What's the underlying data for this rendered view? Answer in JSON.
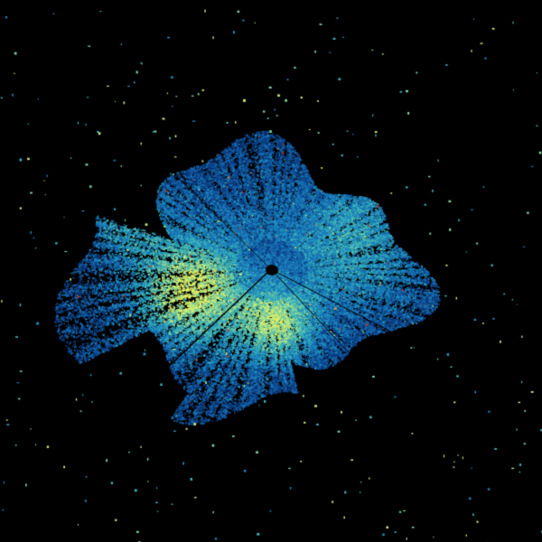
{
  "image": {
    "kind": "radar-ppi-scan",
    "background_color": "#000000",
    "colormap": [
      "#0b3f86",
      "#1769b0",
      "#1f8fc0",
      "#3fb4b8",
      "#7fd3a0",
      "#c8ec78",
      "#f2f25a",
      "#f0a030",
      "#d03020"
    ],
    "center_marker_color": "#000000"
  }
}
